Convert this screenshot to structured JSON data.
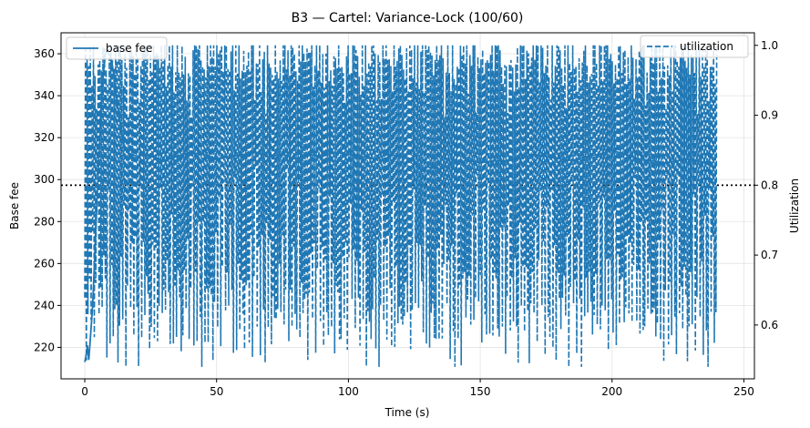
{
  "chart_data": {
    "type": "line",
    "title": "B3 — Cartel: Variance-Lock (100/60)",
    "xlabel": "Time (s)",
    "ylabel": "Base fee",
    "y2label": "Utilization",
    "xlim": [
      -9,
      254
    ],
    "ylim": [
      205,
      370
    ],
    "y2lim": [
      0.523,
      1.018
    ],
    "x_ticks": [
      0,
      50,
      100,
      150,
      200,
      250
    ],
    "y_ticks": [
      220,
      240,
      260,
      280,
      300,
      320,
      340,
      360
    ],
    "y2_ticks": [
      0.6,
      0.7,
      0.8,
      0.9,
      1.0
    ],
    "y2_tick_labels": [
      "0.6",
      "0.7",
      "0.8",
      "0.9",
      "1.0"
    ],
    "grid": true,
    "color": "#1f77b4",
    "reference_line": {
      "axis": "y2",
      "value": 0.8,
      "style": "dotted",
      "color": "#000000"
    },
    "series": [
      {
        "name": "base fee",
        "axis": "left",
        "style": "solid",
        "x": [
          0,
          0.5,
          1,
          1.5,
          2,
          3,
          4,
          5,
          6,
          7,
          8,
          9,
          10,
          11,
          12,
          13,
          14,
          15,
          16,
          18,
          20,
          22,
          25,
          28,
          30,
          35,
          40,
          45,
          50,
          55,
          60,
          65,
          70,
          75,
          80,
          85,
          90,
          95,
          100,
          105,
          110,
          115,
          120,
          125,
          128,
          130,
          135,
          140,
          145,
          150,
          155,
          160,
          165,
          170,
          175,
          180,
          185,
          190,
          195,
          200,
          205,
          210,
          215,
          220,
          225,
          230,
          235,
          239
        ],
        "values": [
          213,
          216,
          221,
          214,
          222,
          240,
          270,
          300,
          330,
          350,
          362,
          360,
          358,
          350,
          340,
          330,
          322,
          316,
          313,
          312,
          311,
          312,
          311,
          310,
          309,
          311,
          313,
          312,
          310,
          311,
          312,
          313,
          311,
          312,
          310,
          312,
          311,
          313,
          312,
          311,
          310,
          312,
          311,
          309,
          304,
          306,
          305,
          308,
          309,
          308,
          309,
          309,
          310,
          312,
          311,
          310,
          309,
          311,
          312,
          314,
          312,
          310,
          309,
          308,
          309,
          310,
          308,
          306
        ]
      },
      {
        "name": "utilization",
        "axis": "right",
        "style": "dashed",
        "pattern_x": [
          0,
          0.3,
          0.6,
          0.9,
          1.2,
          1.5,
          1.8,
          2.1,
          2.4,
          2.7,
          3.0,
          3.3,
          3.6,
          3.9,
          4.2,
          4.5,
          4.8,
          5.1,
          5.4,
          5.7,
          6.0,
          6.3,
          6.6,
          6.9,
          7.2,
          7.5,
          7.8,
          8.1,
          8.4,
          8.7,
          9.0,
          9.3,
          9.6,
          9.9,
          10.2,
          10.5,
          10.8,
          11.1,
          11.4,
          11.7
        ],
        "pattern_values": [
          0.64,
          0.99,
          0.58,
          1.0,
          0.62,
          0.97,
          0.7,
          1.0,
          0.6,
          0.95,
          0.75,
          1.0,
          0.57,
          0.99,
          0.66,
          0.93,
          0.8,
          1.0,
          0.61,
          0.98,
          0.68,
          1.0,
          0.59,
          0.96,
          0.73,
          1.0,
          0.63,
          0.99,
          0.56,
          0.94,
          0.78,
          1.0,
          0.6,
          0.97,
          0.69,
          1.0,
          0.58,
          0.98,
          0.65,
          0.99
        ],
        "x_range": [
          0,
          240
        ]
      }
    ],
    "legend": [
      {
        "label": "base fee",
        "placement": "upper-left",
        "style": "solid"
      },
      {
        "label": "utilization",
        "placement": "upper-right",
        "style": "dashed"
      }
    ]
  }
}
